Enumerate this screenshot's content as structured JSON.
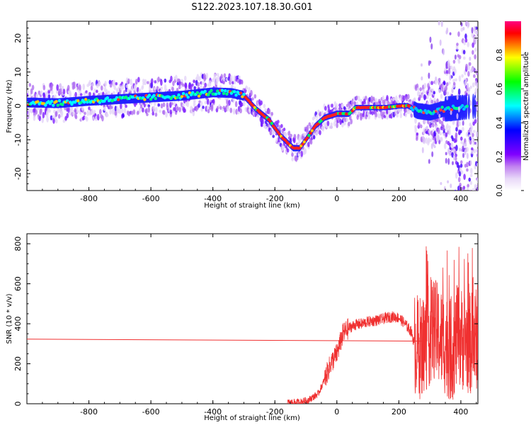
{
  "title": "S122.2023.107.18.30.G01",
  "chart_data": [
    {
      "type": "heatmap",
      "xlabel": "Height of straight line (km)",
      "ylabel": "Frequency (Hz)",
      "xlim": [
        -1000,
        455
      ],
      "ylim": [
        -25,
        25
      ],
      "x_ticks": [
        -800,
        -600,
        -400,
        -200,
        0,
        200,
        400
      ],
      "y_ticks": [
        -20,
        -10,
        0,
        10,
        20
      ],
      "colorbar": {
        "label": "Normalized spectral amplitude",
        "range": [
          0,
          1
        ],
        "ticks": [
          "0.0",
          "0.2",
          "0.4",
          "0.6",
          "0.8"
        ],
        "colormap": [
          "#ffffff",
          "#e8d8f8",
          "#c080f0",
          "#8000ff",
          "#4000ff",
          "#0000ff",
          "#0080ff",
          "#00ffff",
          "#00ff80",
          "#00ff00",
          "#80ff00",
          "#ffff00",
          "#ff8000",
          "#ff0000",
          "#ff0080"
        ]
      },
      "ridge": {
        "x": [
          -1000,
          -900,
          -800,
          -700,
          -600,
          -500,
          -400,
          -340,
          -300,
          -260,
          -220,
          -180,
          -140,
          -120,
          -100,
          -70,
          -40,
          0,
          40,
          60,
          100,
          160,
          200,
          230,
          260,
          300,
          340,
          400,
          455
        ],
        "y": [
          1,
          0.8,
          1.5,
          2,
          2.5,
          3,
          4,
          3.8,
          3,
          -1,
          -4,
          -9,
          -12.5,
          -12.5,
          -10,
          -6,
          -3.5,
          -2.3,
          -2.3,
          -0.5,
          -0.5,
          -0.5,
          0,
          0,
          -1.5,
          -2,
          -1,
          -0.5,
          0
        ]
      }
    },
    {
      "type": "line",
      "xlabel": "Height of straight line (km)",
      "ylabel": "SNR (10 * v/v)",
      "xlim": [
        -1000,
        455
      ],
      "ylim": [
        0,
        850
      ],
      "x_ticks": [
        -800,
        -600,
        -400,
        -200,
        0,
        200,
        400
      ],
      "y_ticks": [
        0,
        200,
        400,
        600,
        800
      ],
      "color": "#f03030",
      "series": [
        {
          "x": [
            -1000,
            280
          ],
          "y": [
            323,
            313
          ]
        },
        {
          "x": [
            -160,
            -120,
            -90,
            -60,
            -40,
            -20,
            0,
            20,
            40,
            60,
            80,
            100,
            120,
            140,
            160,
            180,
            200,
            220,
            240,
            250,
            270,
            290,
            310,
            330,
            350,
            370,
            390,
            410,
            430,
            455
          ],
          "y": [
            5,
            8,
            20,
            50,
            120,
            200,
            250,
            350,
            380,
            395,
            400,
            410,
            415,
            420,
            430,
            435,
            430,
            400,
            360,
            300,
            280,
            320,
            380,
            340,
            300,
            260,
            340,
            320,
            300,
            330
          ]
        }
      ]
    }
  ]
}
